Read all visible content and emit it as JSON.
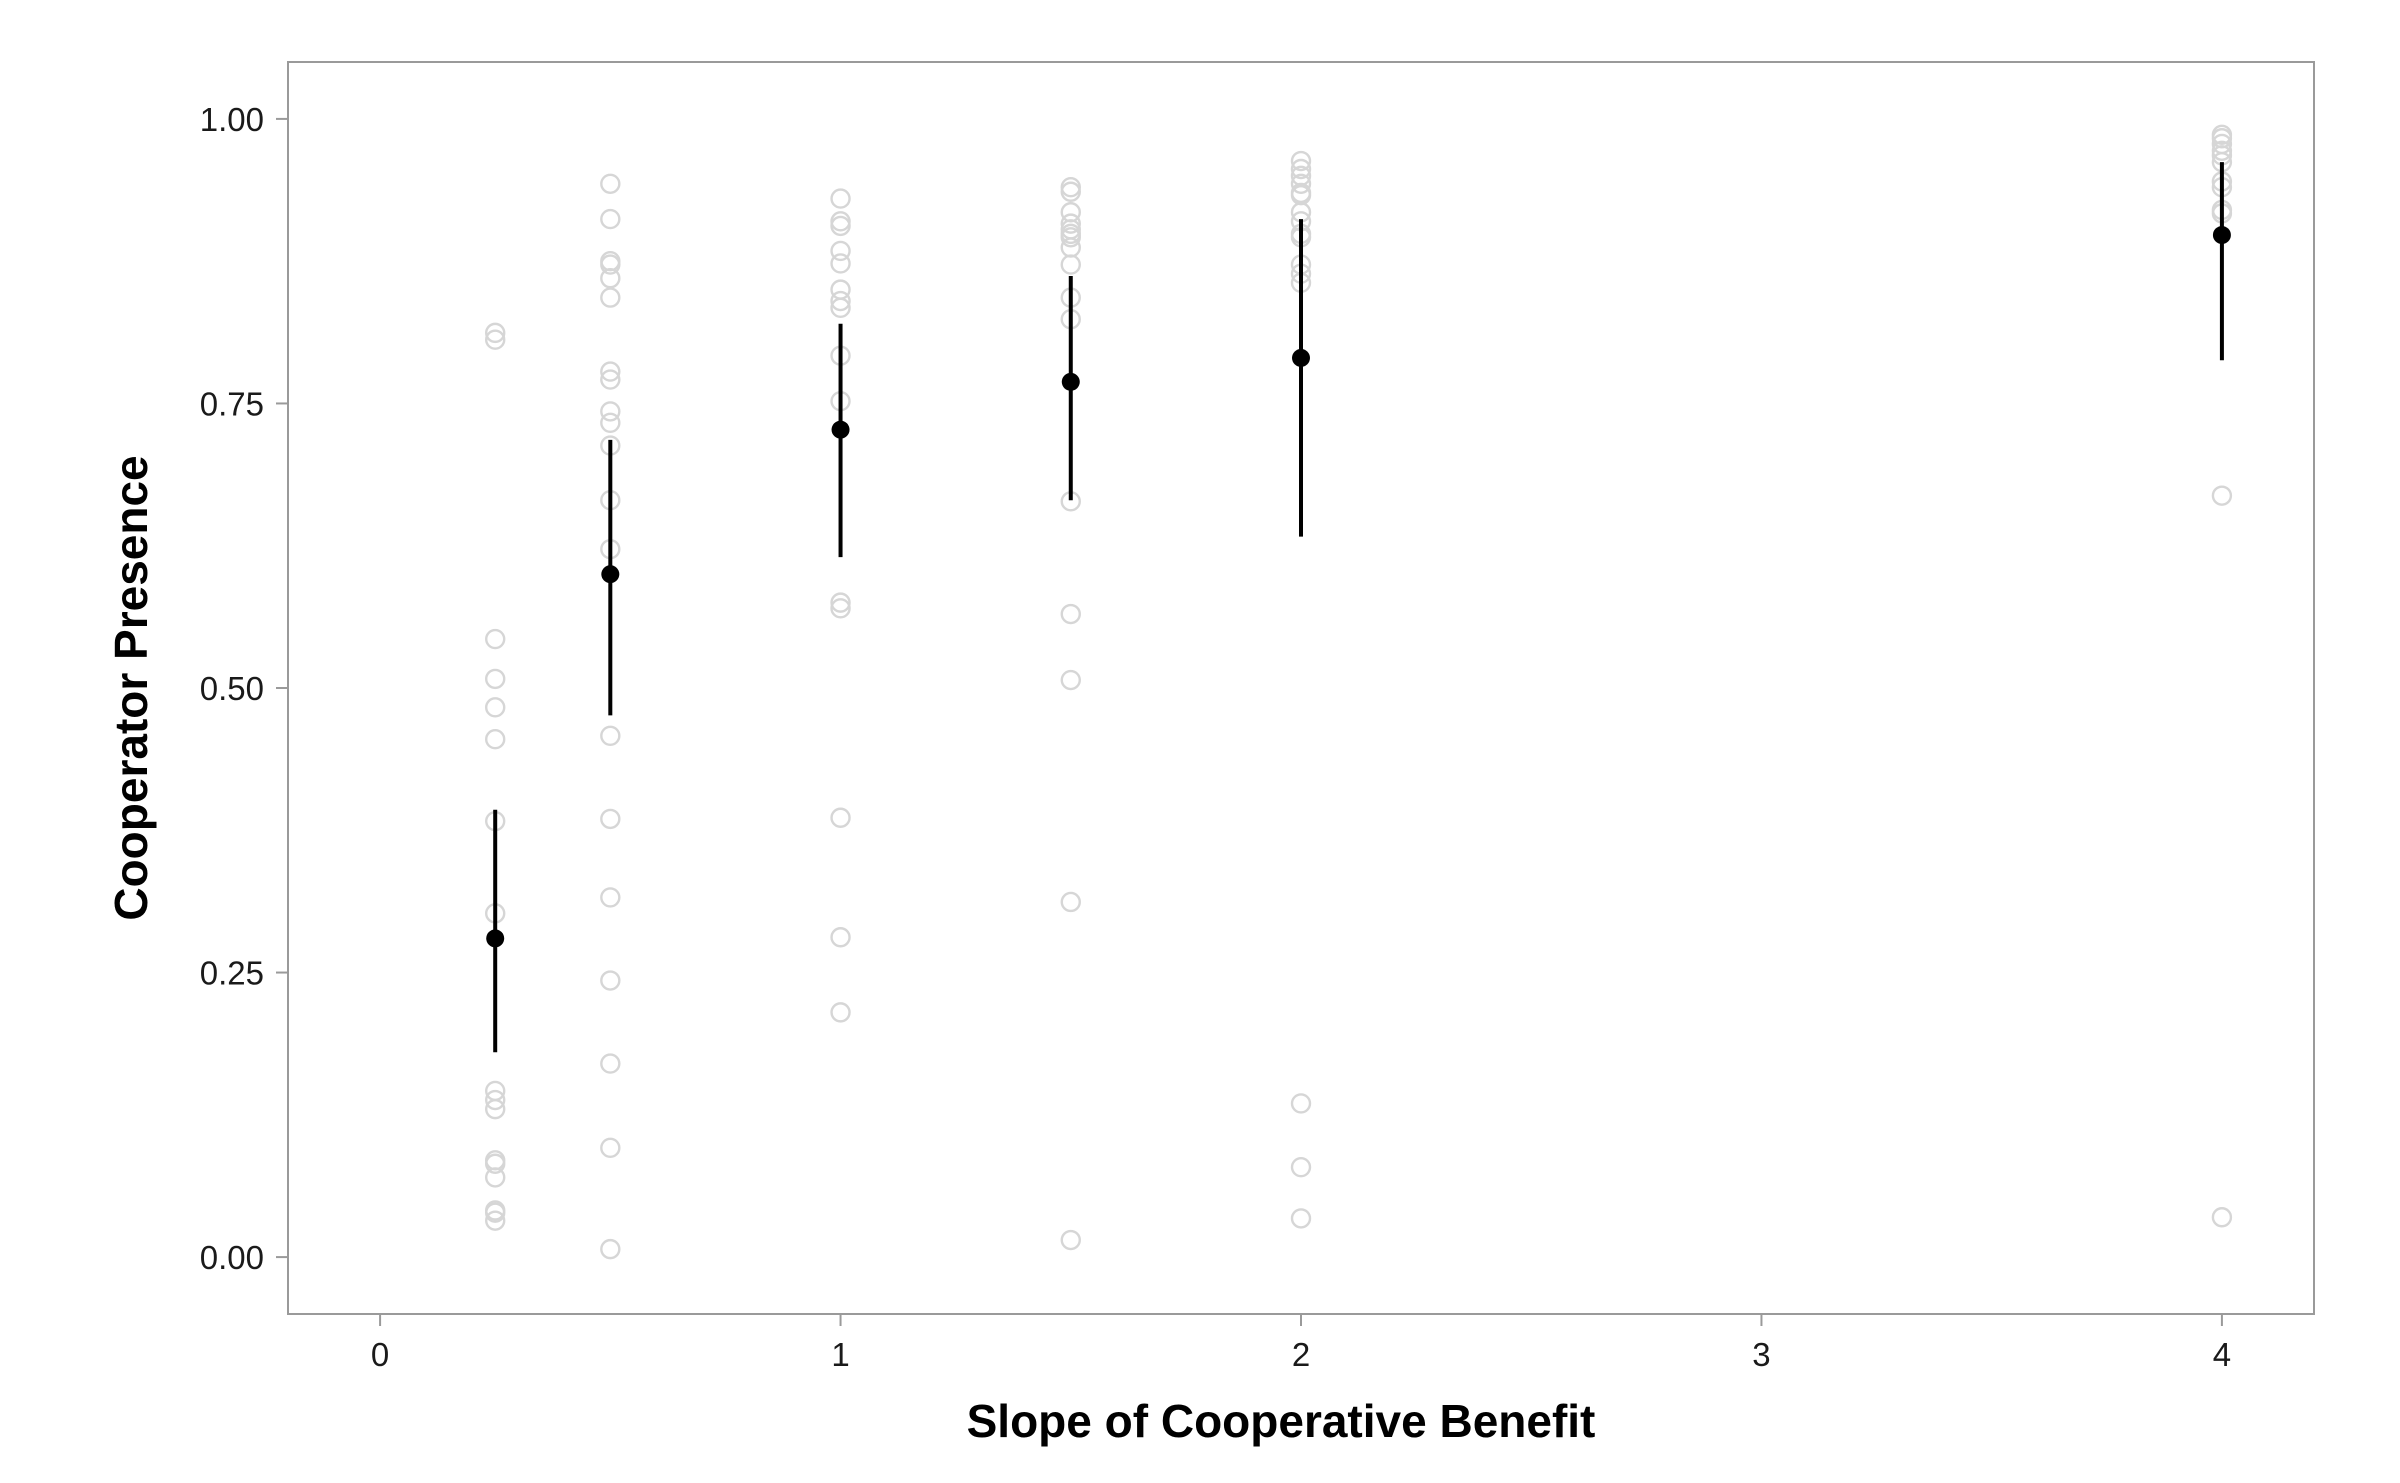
{
  "chart_data": {
    "type": "scatter",
    "title": "",
    "xlabel": "Slope of Cooperative Benefit",
    "ylabel": "Cooperator Presence",
    "xlim": [
      -0.2,
      4.2
    ],
    "ylim": [
      -0.05,
      1.05
    ],
    "x_ticks": [
      0,
      1,
      2,
      3,
      4
    ],
    "x_tick_labels": [
      "0",
      "1",
      "2",
      "3",
      "4"
    ],
    "y_ticks": [
      0,
      0.25,
      0.5,
      0.75,
      1
    ],
    "y_tick_labels": [
      "0.00",
      "0.25",
      "0.50",
      "0.75",
      "1.00"
    ],
    "grid": false,
    "legend": "none",
    "colors": {
      "raw": "#d6d6d6",
      "mean": "#000000",
      "frame": "#9a9a9a"
    },
    "series": [
      {
        "role": "raw-observations",
        "marker": "open-circle",
        "points": [
          {
            "x": 0.25,
            "y": [
              0.812,
              0.806,
              0.543,
              0.508,
              0.483,
              0.455,
              0.383,
              0.302,
              0.146,
              0.138,
              0.13,
              0.085,
              0.082,
              0.07,
              0.041,
              0.039,
              0.032
            ]
          },
          {
            "x": 0.5,
            "y": [
              0.943,
              0.912,
              0.875,
              0.872,
              0.86,
              0.843,
              0.778,
              0.771,
              0.743,
              0.733,
              0.713,
              0.665,
              0.622,
              0.458,
              0.385,
              0.316,
              0.243,
              0.17,
              0.096,
              0.007
            ]
          },
          {
            "x": 1,
            "y": [
              0.93,
              0.91,
              0.906,
              0.884,
              0.873,
              0.85,
              0.84,
              0.834,
              0.792,
              0.752,
              0.575,
              0.57,
              0.386,
              0.281,
              0.215
            ]
          },
          {
            "x": 1.5,
            "y": [
              0.94,
              0.936,
              0.918,
              0.908,
              0.903,
              0.899,
              0.896,
              0.887,
              0.872,
              0.843,
              0.824,
              0.664,
              0.565,
              0.507,
              0.312,
              0.015
            ]
          },
          {
            "x": 2,
            "y": [
              0.963,
              0.956,
              0.95,
              0.943,
              0.935,
              0.933,
              0.918,
              0.91,
              0.899,
              0.896,
              0.872,
              0.864,
              0.856,
              0.135,
              0.079,
              0.034
            ]
          },
          {
            "x": 4,
            "y": [
              0.986,
              0.983,
              0.978,
              0.972,
              0.968,
              0.962,
              0.945,
              0.94,
              0.92,
              0.917,
              0.669,
              0.035
            ]
          }
        ]
      },
      {
        "role": "mean-with-interval",
        "marker": "filled-circle",
        "points": [
          {
            "x": 0.25,
            "y": 0.28,
            "low": 0.18,
            "high": 0.393
          },
          {
            "x": 0.5,
            "y": 0.6,
            "low": 0.476,
            "high": 0.718
          },
          {
            "x": 1,
            "y": 0.727,
            "low": 0.615,
            "high": 0.82
          },
          {
            "x": 1.5,
            "y": 0.769,
            "low": 0.665,
            "high": 0.862
          },
          {
            "x": 2,
            "y": 0.79,
            "low": 0.633,
            "high": 0.912
          },
          {
            "x": 4,
            "y": 0.898,
            "low": 0.788,
            "high": 0.962
          }
        ]
      }
    ]
  }
}
